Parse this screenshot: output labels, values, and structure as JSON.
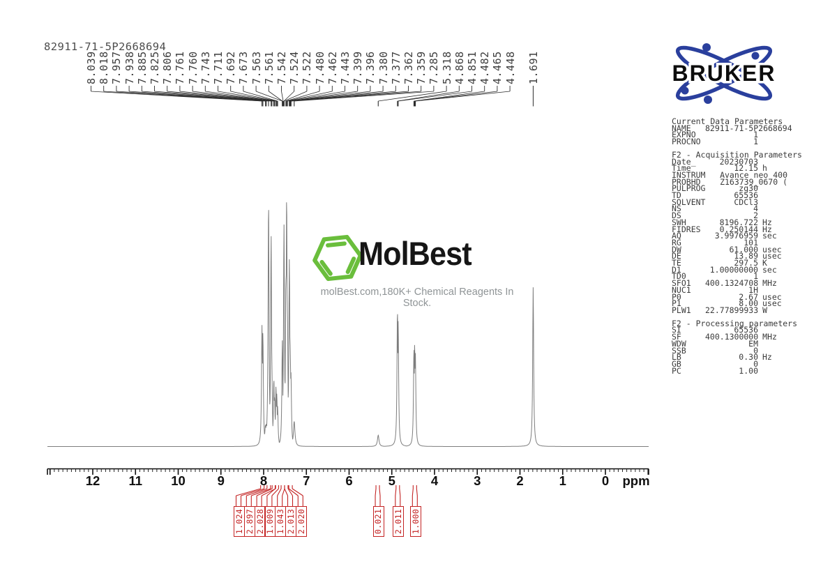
{
  "title": "82911-71-5P2668694",
  "bruker": {
    "label": "BRUKER",
    "orbit_color": "#2a3f9d",
    "text_color": "#0c0c0c"
  },
  "watermark": {
    "brand": "MolBest",
    "tagline": "molBest.com,180K+ Chemical Reagents In Stock.",
    "hex_color": "#6abe3c"
  },
  "chart_data": {
    "type": "line",
    "title": "82911-71-5P2668694",
    "xlabel": "ppm",
    "x_ticks": [
      12,
      11,
      10,
      9,
      8,
      7,
      6,
      5,
      4,
      3,
      2,
      1,
      0
    ],
    "x_range_ppm": [
      13.06,
      -1.01
    ],
    "grid": false,
    "trace_color": "#7d7d7d",
    "axis_color": "#101010",
    "integral_color": "#c32222",
    "peak_label_color": "#3d3d3d",
    "peaks": [
      {
        "ppm": 8.039,
        "h": 0.48
      },
      {
        "ppm": 8.018,
        "h": 0.455
      },
      {
        "ppm": 7.957,
        "h": 0.085
      },
      {
        "ppm": 7.938,
        "h": 0.09
      },
      {
        "ppm": 7.885,
        "h": 0.97
      },
      {
        "ppm": 7.825,
        "h": 0.84
      },
      {
        "ppm": 7.806,
        "h": 0.3
      },
      {
        "ppm": 7.761,
        "h": 0.27
      },
      {
        "ppm": 7.76,
        "h": 0.25
      },
      {
        "ppm": 7.743,
        "h": 0.2
      },
      {
        "ppm": 7.711,
        "h": 0.24
      },
      {
        "ppm": 7.692,
        "h": 0.21
      },
      {
        "ppm": 7.673,
        "h": 0.16
      },
      {
        "ppm": 7.563,
        "h": 0.42
      },
      {
        "ppm": 7.561,
        "h": 0.34
      },
      {
        "ppm": 7.542,
        "h": 0.23
      },
      {
        "ppm": 7.524,
        "h": 0.88
      },
      {
        "ppm": 7.522,
        "h": 0.78
      },
      {
        "ppm": 7.48,
        "h": 0.68
      },
      {
        "ppm": 7.462,
        "h": 1.0
      },
      {
        "ppm": 7.443,
        "h": 0.55
      },
      {
        "ppm": 7.399,
        "h": 0.74
      },
      {
        "ppm": 7.396,
        "h": 0.68
      },
      {
        "ppm": 7.38,
        "h": 0.4
      },
      {
        "ppm": 7.377,
        "h": 0.37
      },
      {
        "ppm": 7.362,
        "h": 0.3
      },
      {
        "ppm": 7.359,
        "h": 0.27
      },
      {
        "ppm": 7.285,
        "h": 0.1
      },
      {
        "ppm": 5.318,
        "h": 0.045
      },
      {
        "ppm": 4.868,
        "h": 0.545
      },
      {
        "ppm": 4.851,
        "h": 0.5
      },
      {
        "ppm": 4.482,
        "h": 0.39
      },
      {
        "ppm": 4.465,
        "h": 0.41
      },
      {
        "ppm": 4.448,
        "h": 0.37
      },
      {
        "ppm": 1.691,
        "h": 0.63
      }
    ],
    "integrals": [
      {
        "value": "1.024",
        "ppm": 8.03
      },
      {
        "value": "2.897",
        "ppm": 7.88
      },
      {
        "value": "2.028",
        "ppm": 7.76
      },
      {
        "value": "1.009",
        "ppm": 7.69
      },
      {
        "value": "1.043",
        "ppm": 7.55
      },
      {
        "value": "2.013",
        "ppm": 7.47
      },
      {
        "value": "2.020",
        "ppm": 7.37
      },
      {
        "value": "0.021",
        "ppm": 5.33
      },
      {
        "value": "2.011",
        "ppm": 4.86
      },
      {
        "value": "1.000",
        "ppm": 4.46
      }
    ]
  },
  "params": {
    "sections": [
      {
        "header": "Current Data Parameters",
        "rows": [
          {
            "l": "NAME",
            "v": "82911-71-5P2668694",
            "u": "",
            "w": true
          },
          {
            "l": "EXPNO",
            "v": "1",
            "u": ""
          },
          {
            "l": "PROCNO",
            "v": "1",
            "u": ""
          }
        ]
      },
      {
        "header": "F2 - Acquisition Parameters",
        "rows": [
          {
            "l": "Date_",
            "v": "20230703",
            "u": ""
          },
          {
            "l": "Time",
            "v": "12.15",
            "u": "h"
          },
          {
            "l": "INSTRUM",
            "v": "Avance neo 400",
            "u": "",
            "w": true
          },
          {
            "l": "PROBHD",
            "v": "Z163739_0670 (",
            "u": "",
            "w": true
          },
          {
            "l": "PULPROG",
            "v": "zg30",
            "u": ""
          },
          {
            "l": "TD",
            "v": "65536",
            "u": ""
          },
          {
            "l": "SOLVENT",
            "v": "CDCl3",
            "u": ""
          },
          {
            "l": "NS",
            "v": "4",
            "u": ""
          },
          {
            "l": "DS",
            "v": "2",
            "u": ""
          },
          {
            "l": "SWH",
            "v": "8196.722",
            "u": "Hz"
          },
          {
            "l": "FIDRES",
            "v": "0.250144",
            "u": "Hz"
          },
          {
            "l": "AQ",
            "v": "3.9976959",
            "u": "sec"
          },
          {
            "l": "RG",
            "v": "101",
            "u": ""
          },
          {
            "l": "DW",
            "v": "61.000",
            "u": "usec"
          },
          {
            "l": "DE",
            "v": "13.89",
            "u": "usec"
          },
          {
            "l": "TE",
            "v": "297.5",
            "u": "K"
          },
          {
            "l": "D1",
            "v": "1.00000000",
            "u": "sec"
          },
          {
            "l": "TD0",
            "v": "1",
            "u": ""
          },
          {
            "l": "SFO1",
            "v": "400.1324708",
            "u": "MHz"
          },
          {
            "l": "NUC1",
            "v": "1H",
            "u": ""
          },
          {
            "l": "P0",
            "v": "2.67",
            "u": "usec"
          },
          {
            "l": "P1",
            "v": "8.00",
            "u": "usec"
          },
          {
            "l": "PLW1",
            "v": "22.77899933",
            "u": "W"
          }
        ]
      },
      {
        "header": "F2 - Processing parameters",
        "rows": [
          {
            "l": "SI",
            "v": "65536",
            "u": ""
          },
          {
            "l": "SF",
            "v": "400.1300000",
            "u": "MHz"
          },
          {
            "l": "WDW",
            "v": "EM",
            "u": ""
          },
          {
            "l": "SSB",
            "v": "0",
            "u": ""
          },
          {
            "l": "LB",
            "v": "0.30",
            "u": "Hz"
          },
          {
            "l": "GB",
            "v": "0",
            "u": ""
          },
          {
            "l": "PC",
            "v": "1.00",
            "u": ""
          }
        ]
      }
    ]
  }
}
